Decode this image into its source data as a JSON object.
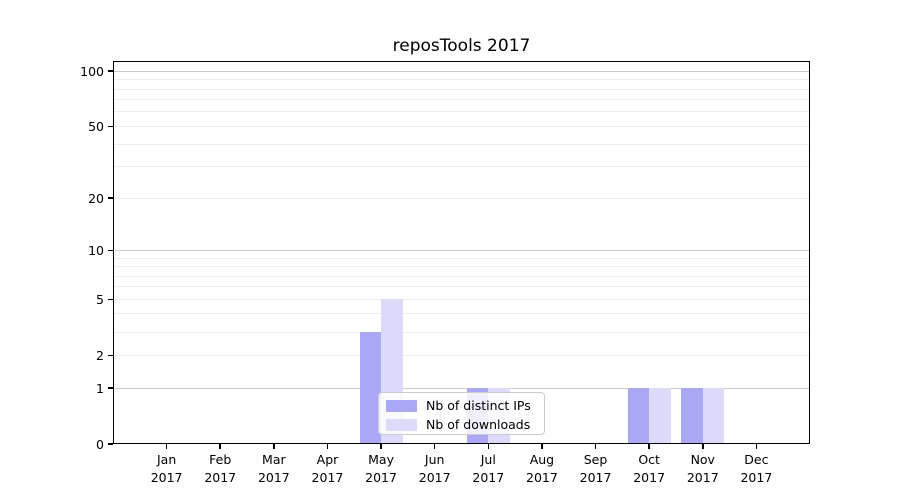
{
  "chart_data": {
    "type": "bar",
    "title": "reposTools 2017",
    "x_categories": [
      {
        "month": "Jan",
        "year": "2017"
      },
      {
        "month": "Feb",
        "year": "2017"
      },
      {
        "month": "Mar",
        "year": "2017"
      },
      {
        "month": "Apr",
        "year": "2017"
      },
      {
        "month": "May",
        "year": "2017"
      },
      {
        "month": "Jun",
        "year": "2017"
      },
      {
        "month": "Jul",
        "year": "2017"
      },
      {
        "month": "Aug",
        "year": "2017"
      },
      {
        "month": "Sep",
        "year": "2017"
      },
      {
        "month": "Oct",
        "year": "2017"
      },
      {
        "month": "Nov",
        "year": "2017"
      },
      {
        "month": "Dec",
        "year": "2017"
      }
    ],
    "series": [
      {
        "name": "Nb of distinct IPs",
        "color": "#a9a9f5",
        "values": [
          0,
          0,
          0,
          0,
          3,
          0,
          1,
          0,
          0,
          1,
          1,
          0
        ]
      },
      {
        "name": "Nb of downloads",
        "color": "#dcdcfa",
        "values": [
          0,
          0,
          0,
          0,
          5,
          0,
          1,
          0,
          0,
          1,
          1,
          0
        ]
      }
    ],
    "y_axis": {
      "scale": "log1p",
      "ticks": [
        {
          "label": "0",
          "value": 0
        },
        {
          "label": "1",
          "value": 1
        },
        {
          "label": "2",
          "value": 2
        },
        {
          "label": "5",
          "value": 5
        },
        {
          "label": "10",
          "value": 10
        },
        {
          "label": "20",
          "value": 20
        },
        {
          "label": "50",
          "value": 50
        },
        {
          "label": "100",
          "value": 100
        }
      ],
      "major_gridlines": [
        1,
        10,
        100
      ],
      "minor_gridlines": [
        2,
        3,
        4,
        5,
        6,
        7,
        8,
        9,
        20,
        30,
        40,
        50,
        60,
        70,
        80,
        90
      ],
      "range": [
        0,
        114
      ]
    },
    "legend": {
      "position": "lower-center"
    },
    "grid": true
  },
  "colors": {
    "background": "#ffffff",
    "spine": "#000000",
    "grid_major": "#c9c9c9",
    "grid_minor": "#ededed",
    "legend_border": "#cccccc",
    "text": "#000000"
  }
}
